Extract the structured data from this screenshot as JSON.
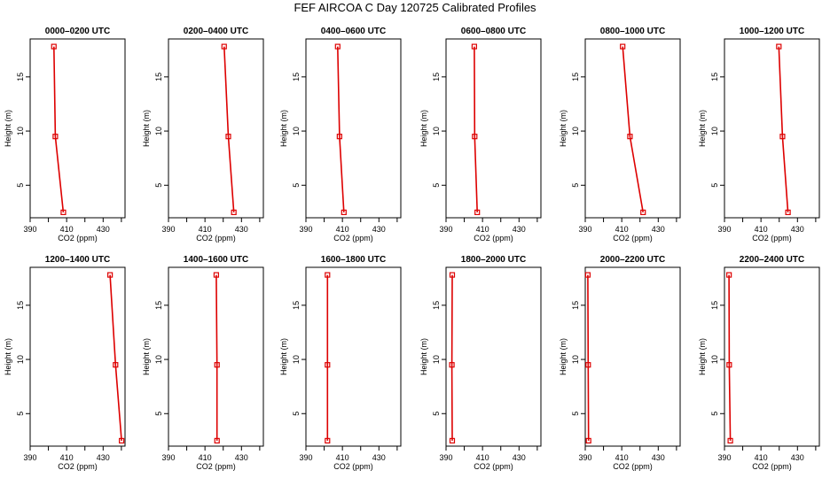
{
  "page_title": "FEF AIRCOA C  Day 120725  Calibrated Profiles",
  "colors": {
    "profile": "#dd0000",
    "axes": "#000000",
    "background": "#ffffff"
  },
  "chart_data": [
    {
      "type": "line",
      "title": "0000–0200 UTC",
      "xlabel": "CO2 (ppm)",
      "ylabel": "Height (m)",
      "xlim": [
        390,
        442
      ],
      "ylim": [
        2,
        18.5
      ],
      "xticks": [
        "390",
        "410",
        "430"
      ],
      "yticks": [
        "5",
        "10",
        "15"
      ],
      "grid": false,
      "series": [
        {
          "x": [
            403,
            403.8,
            408.2
          ],
          "y": [
            17.8,
            9.5,
            2.5
          ]
        }
      ]
    },
    {
      "type": "line",
      "title": "0200–0400 UTC",
      "xlabel": "CO2 (ppm)",
      "ylabel": "Height (m)",
      "xlim": [
        390,
        442
      ],
      "ylim": [
        2,
        18.5
      ],
      "xticks": [
        "390",
        "410",
        "430"
      ],
      "yticks": [
        "5",
        "10",
        "15"
      ],
      "grid": false,
      "series": [
        {
          "x": [
            420.5,
            422.8,
            425.8
          ],
          "y": [
            17.8,
            9.5,
            2.5
          ]
        }
      ]
    },
    {
      "type": "line",
      "title": "0400–0600 UTC",
      "xlabel": "CO2 (ppm)",
      "ylabel": "Height (m)",
      "xlim": [
        390,
        442
      ],
      "ylim": [
        2,
        18.5
      ],
      "xticks": [
        "390",
        "410",
        "430"
      ],
      "yticks": [
        "5",
        "10",
        "15"
      ],
      "grid": false,
      "series": [
        {
          "x": [
            407.4,
            408.4,
            410.8
          ],
          "y": [
            17.8,
            9.5,
            2.5
          ]
        }
      ]
    },
    {
      "type": "line",
      "title": "0600–0800 UTC",
      "xlabel": "CO2 (ppm)",
      "ylabel": "Height (m)",
      "xlim": [
        390,
        442
      ],
      "ylim": [
        2,
        18.5
      ],
      "xticks": [
        "390",
        "410",
        "430"
      ],
      "yticks": [
        "5",
        "10",
        "15"
      ],
      "grid": false,
      "series": [
        {
          "x": [
            405.5,
            405.7,
            407.1
          ],
          "y": [
            17.8,
            9.5,
            2.5
          ]
        }
      ]
    },
    {
      "type": "line",
      "title": "0800–1000 UTC",
      "xlabel": "CO2 (ppm)",
      "ylabel": "Height (m)",
      "xlim": [
        390,
        442
      ],
      "ylim": [
        2,
        18.5
      ],
      "xticks": [
        "390",
        "410",
        "430"
      ],
      "yticks": [
        "5",
        "10",
        "15"
      ],
      "grid": false,
      "series": [
        {
          "x": [
            410.5,
            414.5,
            421.7
          ],
          "y": [
            17.8,
            9.5,
            2.5
          ]
        }
      ]
    },
    {
      "type": "line",
      "title": "1000–1200 UTC",
      "xlabel": "CO2 (ppm)",
      "ylabel": "Height (m)",
      "xlim": [
        390,
        442
      ],
      "ylim": [
        2,
        18.5
      ],
      "xticks": [
        "390",
        "410",
        "430"
      ],
      "yticks": [
        "5",
        "10",
        "15"
      ],
      "grid": false,
      "series": [
        {
          "x": [
            419.8,
            421.8,
            424.8
          ],
          "y": [
            17.8,
            9.5,
            2.5
          ]
        }
      ]
    },
    {
      "type": "line",
      "title": "1200–1400 UTC",
      "xlabel": "CO2 (ppm)",
      "ylabel": "Height (m)",
      "xlim": [
        390,
        442
      ],
      "ylim": [
        2,
        18.5
      ],
      "xticks": [
        "390",
        "410",
        "430"
      ],
      "yticks": [
        "5",
        "10",
        "15"
      ],
      "grid": false,
      "series": [
        {
          "x": [
            433.8,
            436.8,
            440.1
          ],
          "y": [
            17.8,
            9.5,
            2.5
          ]
        }
      ]
    },
    {
      "type": "line",
      "title": "1400–1600 UTC",
      "xlabel": "CO2 (ppm)",
      "ylabel": "Height (m)",
      "xlim": [
        390,
        442
      ],
      "ylim": [
        2,
        18.5
      ],
      "xticks": [
        "390",
        "410",
        "430"
      ],
      "yticks": [
        "5",
        "10",
        "15"
      ],
      "grid": false,
      "series": [
        {
          "x": [
            416.2,
            416.6,
            416.6
          ],
          "y": [
            17.8,
            9.5,
            2.5
          ]
        }
      ]
    },
    {
      "type": "line",
      "title": "1600–1800 UTC",
      "xlabel": "CO2 (ppm)",
      "ylabel": "Height (m)",
      "xlim": [
        390,
        442
      ],
      "ylim": [
        2,
        18.5
      ],
      "xticks": [
        "390",
        "410",
        "430"
      ],
      "yticks": [
        "5",
        "10",
        "15"
      ],
      "grid": false,
      "series": [
        {
          "x": [
            401.8,
            401.8,
            401.8
          ],
          "y": [
            17.8,
            9.5,
            2.5
          ]
        }
      ]
    },
    {
      "type": "line",
      "title": "1800–2000 UTC",
      "xlabel": "CO2 (ppm)",
      "ylabel": "Height (m)",
      "xlim": [
        390,
        442
      ],
      "ylim": [
        2,
        18.5
      ],
      "xticks": [
        "390",
        "410",
        "430"
      ],
      "yticks": [
        "5",
        "10",
        "15"
      ],
      "grid": false,
      "series": [
        {
          "x": [
            393.4,
            393.2,
            393.4
          ],
          "y": [
            17.8,
            9.5,
            2.5
          ]
        }
      ]
    },
    {
      "type": "line",
      "title": "2000–2200 UTC",
      "xlabel": "CO2 (ppm)",
      "ylabel": "Height (m)",
      "xlim": [
        390,
        442
      ],
      "ylim": [
        2,
        18.5
      ],
      "xticks": [
        "390",
        "410",
        "430"
      ],
      "yticks": [
        "5",
        "10",
        "15"
      ],
      "grid": false,
      "series": [
        {
          "x": [
            391.4,
            391.6,
            391.8
          ],
          "y": [
            17.8,
            9.5,
            2.5
          ]
        }
      ]
    },
    {
      "type": "line",
      "title": "2200–2400 UTC",
      "xlabel": "CO2 (ppm)",
      "ylabel": "Height (m)",
      "xlim": [
        390,
        442
      ],
      "ylim": [
        2,
        18.5
      ],
      "xticks": [
        "390",
        "410",
        "430"
      ],
      "yticks": [
        "5",
        "10",
        "15"
      ],
      "grid": false,
      "series": [
        {
          "x": [
            392.5,
            392.6,
            393.2
          ],
          "y": [
            17.8,
            9.5,
            2.5
          ]
        }
      ]
    }
  ]
}
